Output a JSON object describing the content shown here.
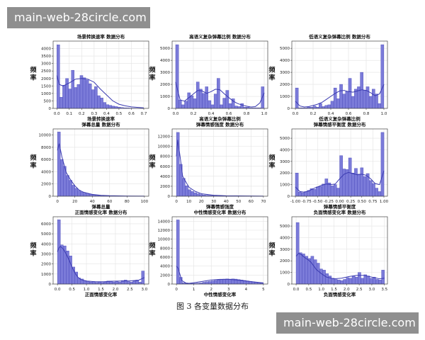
{
  "watermarks": {
    "top": "main-web-28circle.com",
    "bottom": "main-web-28circle.com"
  },
  "figure_caption": "图 3   各变量数据分布",
  "colors": {
    "bar_fill": "#7b7bd9",
    "bar_edge": "#4747b8",
    "kde": "#3a3ab0",
    "grid": "#e3e3e3",
    "axes": "#444444"
  },
  "chart_data": [
    {
      "type": "bar",
      "title": "场景转换速率  数据分布",
      "xlabel": "场景转换速率",
      "ylabel": "频率",
      "xlim": [
        -0.03,
        0.74
      ],
      "ylim": [
        0,
        4500
      ],
      "xticks": [
        0.0,
        0.1,
        0.2,
        0.3,
        0.4,
        0.5,
        0.6,
        0.7
      ],
      "yticks": [
        0,
        500,
        1000,
        1500,
        2000,
        2500,
        3000,
        3500,
        4000
      ],
      "grid": true,
      "bins": {
        "start": 0.0,
        "width": 0.0233,
        "values": [
          4250,
          750,
          1550,
          2000,
          1300,
          2550,
          1400,
          1600,
          2200,
          2050,
          1900,
          1650,
          1250,
          1450,
          850,
          700,
          400,
          250,
          200,
          150,
          120,
          80,
          60,
          40,
          30,
          20,
          15,
          10,
          8,
          5
        ]
      },
      "kde": [
        [
          0.0,
          2200
        ],
        [
          0.02,
          1600
        ],
        [
          0.05,
          1500
        ],
        [
          0.1,
          1700
        ],
        [
          0.15,
          1950
        ],
        [
          0.2,
          2000
        ],
        [
          0.25,
          1950
        ],
        [
          0.3,
          1750
        ],
        [
          0.35,
          1300
        ],
        [
          0.4,
          900
        ],
        [
          0.45,
          500
        ],
        [
          0.5,
          280
        ],
        [
          0.55,
          170
        ],
        [
          0.6,
          100
        ],
        [
          0.7,
          40
        ]
      ]
    },
    {
      "type": "bar",
      "title": "高语义复杂弹幕比例  数据分布",
      "xlabel": "高语义复杂弹幕比例",
      "ylabel": "频率",
      "xlim": [
        -0.04,
        1.04
      ],
      "ylim": [
        0,
        5600
      ],
      "xticks": [
        0.0,
        0.2,
        0.4,
        0.6,
        0.8,
        1.0
      ],
      "yticks": [
        0,
        1000,
        2000,
        3000,
        4000,
        5000
      ],
      "grid": true,
      "bins": {
        "start": 0.0,
        "width": 0.0333,
        "values": [
          5300,
          700,
          300,
          600,
          1300,
          1050,
          800,
          2200,
          1600,
          1250,
          1800,
          650,
          300,
          1200,
          2500,
          300,
          850,
          1500,
          400,
          800,
          200,
          150,
          400,
          100,
          100,
          50,
          50,
          50,
          50,
          1800
        ]
      },
      "kde": [
        [
          0.0,
          2200
        ],
        [
          0.05,
          700
        ],
        [
          0.1,
          600
        ],
        [
          0.15,
          900
        ],
        [
          0.2,
          1200
        ],
        [
          0.25,
          1500
        ],
        [
          0.3,
          1450
        ],
        [
          0.35,
          1250
        ],
        [
          0.4,
          1400
        ],
        [
          0.45,
          1600
        ],
        [
          0.5,
          1550
        ],
        [
          0.55,
          1200
        ],
        [
          0.6,
          900
        ],
        [
          0.65,
          600
        ],
        [
          0.7,
          400
        ],
        [
          0.75,
          280
        ],
        [
          0.8,
          180
        ],
        [
          0.85,
          120
        ],
        [
          0.9,
          150
        ],
        [
          0.95,
          450
        ],
        [
          1.0,
          1300
        ]
      ]
    },
    {
      "type": "bar",
      "title": "低语义复杂弹幕比例  数据分布",
      "xlabel": "低语义复杂弹幕比例",
      "ylabel": "频率",
      "xlim": [
        -0.04,
        1.04
      ],
      "ylim": [
        0,
        5600
      ],
      "xticks": [
        0.0,
        0.2,
        0.4,
        0.6,
        0.8,
        1.0
      ],
      "yticks": [
        0,
        1000,
        2000,
        3000,
        4000,
        5000
      ],
      "grid": true,
      "bins": {
        "start": 0.0,
        "width": 0.0333,
        "values": [
          1700,
          50,
          50,
          50,
          100,
          100,
          200,
          100,
          400,
          150,
          250,
          300,
          600,
          1700,
          800,
          2000,
          1200,
          1400,
          2500,
          1000,
          1600,
          1800,
          3000,
          1500,
          1800,
          1000,
          1600,
          1200,
          400,
          5300
        ]
      },
      "kde": [
        [
          0.0,
          600
        ],
        [
          0.05,
          200
        ],
        [
          0.1,
          120
        ],
        [
          0.15,
          150
        ],
        [
          0.2,
          250
        ],
        [
          0.25,
          350
        ],
        [
          0.3,
          500
        ],
        [
          0.35,
          750
        ],
        [
          0.4,
          1000
        ],
        [
          0.45,
          1250
        ],
        [
          0.5,
          1450
        ],
        [
          0.55,
          1500
        ],
        [
          0.6,
          1400
        ],
        [
          0.65,
          1350
        ],
        [
          0.7,
          1450
        ],
        [
          0.75,
          1550
        ],
        [
          0.8,
          1500
        ],
        [
          0.85,
          1300
        ],
        [
          0.9,
          1050
        ],
        [
          0.95,
          1200
        ],
        [
          1.0,
          2000
        ]
      ]
    },
    {
      "type": "bar",
      "title": "弹幕总量  数据分布",
      "xlabel": "弹幕总量",
      "ylabel": "频率",
      "xlim": [
        -5,
        105
      ],
      "ylim": [
        0,
        11000
      ],
      "xticks": [
        0,
        20,
        40,
        60,
        80,
        100
      ],
      "yticks": [
        0,
        2000,
        4000,
        6000,
        8000,
        10000
      ],
      "grid": true,
      "bins": {
        "start": 0.0,
        "width": 3.33,
        "values": [
          10500,
          6000,
          4900,
          3400,
          2600,
          1800,
          1300,
          950,
          700,
          500,
          380,
          300,
          220,
          170,
          130,
          100,
          80,
          60,
          50,
          40,
          30,
          25,
          20,
          15,
          12,
          10,
          8,
          6,
          5,
          4
        ]
      },
      "kde": [
        [
          0,
          7500
        ],
        [
          2,
          8600
        ],
        [
          5,
          6500
        ],
        [
          10,
          3900
        ],
        [
          15,
          2700
        ],
        [
          20,
          1700
        ],
        [
          25,
          1000
        ],
        [
          30,
          650
        ],
        [
          40,
          300
        ],
        [
          50,
          150
        ],
        [
          60,
          80
        ],
        [
          80,
          30
        ],
        [
          100,
          10
        ]
      ]
    },
    {
      "type": "bar",
      "title": "弹幕情感强度  数据分布",
      "xlabel": "弹幕情感强度",
      "ylabel": "频率",
      "xlim": [
        -3.5,
        73.5
      ],
      "ylim": [
        0,
        13500
      ],
      "xticks": [
        0,
        10,
        20,
        30,
        40,
        50,
        60,
        70
      ],
      "yticks": [
        0,
        2000,
        4000,
        6000,
        8000,
        10000,
        12000
      ],
      "grid": true,
      "bins": {
        "start": 0.0,
        "width": 2.33,
        "values": [
          12800,
          6400,
          3600,
          2100,
          1300,
          950,
          700,
          500,
          350,
          250,
          200,
          150,
          120,
          90,
          70,
          50,
          40,
          30,
          25,
          20,
          15,
          12,
          10,
          8,
          6,
          5,
          4,
          3,
          2,
          2
        ]
      },
      "kde": [
        [
          0,
          8000
        ],
        [
          1,
          11300
        ],
        [
          3,
          7800
        ],
        [
          5,
          4000
        ],
        [
          10,
          1800
        ],
        [
          15,
          1000
        ],
        [
          20,
          500
        ],
        [
          30,
          200
        ],
        [
          40,
          80
        ],
        [
          70,
          10
        ]
      ]
    },
    {
      "type": "bar",
      "title": "弹幕情感平衡度  数据分布",
      "xlabel": "弹幕情感平衡度",
      "ylabel": "频率",
      "xlim": [
        -1.08,
        1.08
      ],
      "ylim": [
        0,
        5800
      ],
      "xticks": [
        -1.0,
        -0.75,
        -0.5,
        -0.25,
        0.0,
        0.25,
        0.5,
        0.75,
        1.0
      ],
      "yticks": [
        0,
        1000,
        2000,
        3000,
        4000,
        5000
      ],
      "grid": true,
      "bins": {
        "start": -1.0,
        "width": 0.0667,
        "values": [
          2000,
          350,
          300,
          400,
          500,
          650,
          600,
          800,
          850,
          1050,
          1500,
          1150,
          900,
          1000,
          700,
          3500,
          2350,
          2300,
          3300,
          2000,
          2400,
          1900,
          2450,
          1700,
          1950,
          1350,
          1100,
          700,
          400,
          5500
        ]
      },
      "kde": [
        [
          -1.0,
          800
        ],
        [
          -0.9,
          400
        ],
        [
          -0.8,
          350
        ],
        [
          -0.7,
          450
        ],
        [
          -0.6,
          650
        ],
        [
          -0.5,
          800
        ],
        [
          -0.4,
          950
        ],
        [
          -0.3,
          1050
        ],
        [
          -0.2,
          1000
        ],
        [
          -0.1,
          1050
        ],
        [
          0.0,
          1500
        ],
        [
          0.1,
          1900
        ],
        [
          0.2,
          2050
        ],
        [
          0.3,
          1950
        ],
        [
          0.4,
          1850
        ],
        [
          0.5,
          1900
        ],
        [
          0.6,
          1800
        ],
        [
          0.7,
          1500
        ],
        [
          0.8,
          1100
        ],
        [
          0.9,
          1000
        ],
        [
          1.0,
          2200
        ]
      ]
    },
    {
      "type": "bar",
      "title": "正面情感变化率  数据分布",
      "xlabel": "正面情感变化率",
      "ylabel": "频率",
      "xlim": [
        -0.15,
        3.15
      ],
      "ylim": [
        0,
        6700
      ],
      "xticks": [
        0.0,
        0.5,
        1.0,
        1.5,
        2.0,
        2.5,
        3.0
      ],
      "yticks": [
        0,
        1000,
        2000,
        3000,
        4000,
        5000,
        6000
      ],
      "grid": true,
      "bins": {
        "start": 0.0,
        "width": 0.1,
        "values": [
          6400,
          3900,
          3800,
          3300,
          2800,
          1700,
          1200,
          600,
          500,
          350,
          300,
          200,
          250,
          150,
          200,
          150,
          200,
          300,
          300,
          200,
          250,
          200,
          350,
          400,
          250,
          200,
          300,
          400,
          200,
          1300
        ]
      },
      "kde": [
        [
          0.0,
          3200
        ],
        [
          0.05,
          3600
        ],
        [
          0.1,
          3750
        ],
        [
          0.2,
          3500
        ],
        [
          0.3,
          3000
        ],
        [
          0.4,
          2400
        ],
        [
          0.5,
          1700
        ],
        [
          0.6,
          1100
        ],
        [
          0.7,
          700
        ],
        [
          0.8,
          450
        ],
        [
          1.0,
          300
        ],
        [
          1.3,
          230
        ],
        [
          1.6,
          230
        ],
        [
          1.9,
          280
        ],
        [
          2.2,
          300
        ],
        [
          2.5,
          320
        ],
        [
          2.8,
          380
        ],
        [
          3.0,
          650
        ]
      ]
    },
    {
      "type": "bar",
      "title": "中性情感变化率  数据分布",
      "xlabel": "中性情感变化率",
      "ylabel": "频率",
      "xlim": [
        -0.25,
        5.25
      ],
      "ylim": [
        0,
        15000
      ],
      "xticks": [
        0,
        1,
        2,
        3,
        4,
        5
      ],
      "yticks": [
        0,
        2000,
        4000,
        6000,
        8000,
        10000,
        12000,
        14000
      ],
      "grid": true,
      "bins": {
        "start": 0.0,
        "width": 0.1667,
        "values": [
          14300,
          1500,
          300,
          250,
          200,
          150,
          150,
          200,
          250,
          400,
          500,
          600,
          700,
          800,
          900,
          1000,
          1100,
          1150,
          1100,
          1150,
          1100,
          1000,
          900,
          800,
          700,
          600,
          500,
          400,
          300,
          200
        ]
      },
      "kde": [
        [
          0.0,
          4000
        ],
        [
          0.1,
          3500
        ],
        [
          0.3,
          800
        ],
        [
          0.6,
          100
        ],
        [
          1.0,
          300
        ],
        [
          1.5,
          600
        ],
        [
          2.0,
          900
        ],
        [
          2.5,
          1050
        ],
        [
          3.0,
          1050
        ],
        [
          3.5,
          900
        ],
        [
          4.0,
          700
        ],
        [
          4.5,
          450
        ],
        [
          5.0,
          250
        ]
      ]
    },
    {
      "type": "bar",
      "title": "负面情感变化率  数据分布",
      "xlabel": "负面情感变化率",
      "ylabel": "频率",
      "xlim": [
        -0.17,
        3.62
      ],
      "ylim": [
        0,
        5800
      ],
      "xticks": [
        0.0,
        0.5,
        1.0,
        1.5,
        2.0,
        2.5,
        3.0,
        3.5
      ],
      "yticks": [
        0,
        1000,
        2000,
        3000,
        4000,
        5000
      ],
      "grid": true,
      "bins": {
        "start": 0.0,
        "width": 0.1167,
        "values": [
          5300,
          2700,
          2600,
          2400,
          2200,
          2400,
          2100,
          1800,
          1300,
          1200,
          900,
          700,
          500,
          400,
          350,
          300,
          400,
          550,
          500,
          700,
          600,
          1000,
          500,
          800,
          700,
          500,
          600,
          400,
          350,
          1200
        ]
      },
      "kde": [
        [
          0.0,
          2400
        ],
        [
          0.1,
          2650
        ],
        [
          0.2,
          2550
        ],
        [
          0.3,
          2350
        ],
        [
          0.4,
          2200
        ],
        [
          0.5,
          2050
        ],
        [
          0.6,
          1850
        ],
        [
          0.7,
          1550
        ],
        [
          0.8,
          1250
        ],
        [
          1.0,
          900
        ],
        [
          1.2,
          600
        ],
        [
          1.5,
          450
        ],
        [
          1.8,
          500
        ],
        [
          2.1,
          650
        ],
        [
          2.4,
          750
        ],
        [
          2.7,
          750
        ],
        [
          3.0,
          600
        ],
        [
          3.3,
          450
        ],
        [
          3.5,
          500
        ]
      ]
    }
  ]
}
